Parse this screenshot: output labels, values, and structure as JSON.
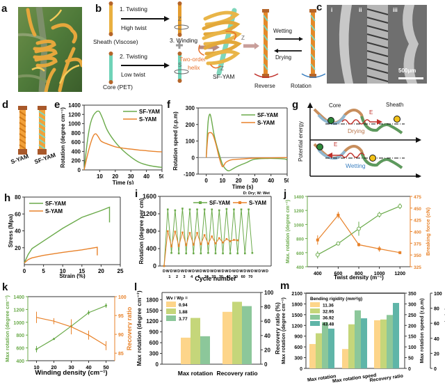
{
  "panels": {
    "a": {
      "letter": "a"
    },
    "b": {
      "letter": "b",
      "step1": "1. Twisting",
      "step1_sub": "High twist",
      "step2": "2. Twisting",
      "step2_sub": "Low twist",
      "step3": "3. Winding",
      "sheath_label": "Sheath (Viscose)",
      "core_label": "Core (PET)",
      "z_label": "Z",
      "s_label": "S",
      "helix_label_1": "Two-order",
      "helix_label_2": "helix",
      "sfyam_label": "SF-YAM",
      "wetting": "Wetting",
      "drying": "Drying",
      "reverse": "Reverse",
      "rotation": "Rotation",
      "plus": "+"
    },
    "c": {
      "letter": "c",
      "sub_labels": [
        "i",
        "ii",
        "iii"
      ],
      "scale_bar": "500μm"
    },
    "d": {
      "letter": "d",
      "labels": [
        "S-YAM",
        "SF-YAM"
      ]
    },
    "g": {
      "letter": "g",
      "ylabel": "Potential energy",
      "core": "Core",
      "sheath": "Sheath",
      "energy": "E",
      "drying": "Drying",
      "wetting": "Wetting"
    }
  },
  "colors": {
    "green": "#6aaa4a",
    "orange": "#e8822a",
    "bar_yellow": "#fdd58a",
    "bar_lightgreen": "#c5d67a",
    "bar_green": "#8cc79a",
    "bar_teal": "#5fb5a8"
  },
  "chart_data": [
    {
      "id": "e",
      "type": "line",
      "title": "",
      "xlabel": "Time (s)",
      "ylabel": "Rotation (degree cm⁻¹)",
      "xlim": [
        0,
        50
      ],
      "ylim": [
        0,
        1400
      ],
      "xticks": [
        10,
        20,
        30,
        40,
        50
      ],
      "yticks": [
        0,
        200,
        400,
        600,
        800,
        1000,
        1200,
        1400
      ],
      "legend": "top-right",
      "series": [
        {
          "name": "SF-YAM",
          "x": [
            0,
            2,
            4,
            6,
            8,
            9,
            10,
            12,
            15,
            20,
            25,
            30,
            35,
            40,
            45,
            50
          ],
          "y": [
            0,
            600,
            1000,
            1180,
            1260,
            1270,
            1250,
            1100,
            850,
            600,
            420,
            280,
            170,
            110,
            75,
            55
          ]
        },
        {
          "name": "S-YAM",
          "x": [
            0,
            2,
            4,
            6,
            7.5,
            9,
            11,
            15,
            20,
            25,
            30,
            35,
            40,
            45,
            50
          ],
          "y": [
            0,
            300,
            560,
            740,
            780,
            720,
            620,
            560,
            500,
            470,
            450,
            430,
            415,
            400,
            390
          ]
        }
      ]
    },
    {
      "id": "f",
      "type": "line",
      "title": "",
      "xlabel": "Time (s)",
      "ylabel": "Rotation speed (r.p.m)",
      "xlim": [
        -5,
        50
      ],
      "ylim": [
        -100,
        300
      ],
      "xticks": [
        0,
        10,
        20,
        30,
        40,
        50
      ],
      "yticks": [
        -100,
        0,
        100,
        200,
        300
      ],
      "legend": "top-right",
      "series": [
        {
          "name": "SF-YAM",
          "x": [
            0,
            1,
            2,
            3,
            5,
            8,
            10,
            12,
            14,
            17,
            20,
            25,
            30,
            40,
            48,
            50
          ],
          "y": [
            0,
            200,
            260,
            240,
            130,
            20,
            -40,
            -70,
            -80,
            -65,
            -50,
            -30,
            -10,
            -5,
            -8,
            -15
          ]
        },
        {
          "name": "S-YAM",
          "x": [
            0,
            1,
            2,
            4,
            6,
            8,
            10,
            12,
            15,
            20,
            30,
            40,
            50
          ],
          "y": [
            0,
            130,
            150,
            140,
            80,
            0,
            -55,
            -30,
            -15,
            -10,
            -3,
            -2,
            0
          ]
        }
      ]
    },
    {
      "id": "h",
      "type": "line",
      "title": "",
      "xlabel": "Strain (%)",
      "ylabel": "Stress (Mpa)",
      "xlim": [
        0,
        25
      ],
      "ylim": [
        0,
        80
      ],
      "xticks": [
        0,
        5,
        10,
        15,
        20,
        25
      ],
      "yticks": [
        20,
        40,
        60,
        80
      ],
      "legend": "top-left",
      "series": [
        {
          "name": "SF-YAM",
          "x": [
            0,
            1,
            2,
            5,
            10,
            15,
            20,
            22.2,
            22.2
          ],
          "y": [
            2,
            12,
            19,
            28,
            43,
            56,
            64,
            68,
            50
          ]
        },
        {
          "name": "S-YAM",
          "x": [
            0,
            1,
            2,
            5,
            10,
            15,
            19,
            19,
            19
          ],
          "y": [
            2,
            6,
            8,
            11,
            14.5,
            17.5,
            20.5,
            20.5,
            11
          ]
        }
      ]
    },
    {
      "id": "i",
      "type": "line",
      "title": "",
      "xlabel": "Cycle number",
      "ylabel": "Rotation (degree per cm)",
      "annotation": "D: Dry; W: Wet",
      "ylim": [
        0,
        1600
      ],
      "yticks": [
        0,
        400,
        800,
        1200,
        1600
      ],
      "xtick_labels_top": [
        "D",
        "W",
        "D",
        "W",
        "D",
        "W",
        "D",
        "W",
        "D",
        "W",
        "D",
        "W",
        "D",
        "W",
        "D",
        "W",
        "D",
        "W",
        "D",
        "W",
        "D",
        "W",
        "D",
        "W",
        "D",
        "W",
        "D",
        "W",
        "D"
      ],
      "cycle_labels": [
        "1",
        "2",
        "3",
        "4",
        "5",
        "10",
        "20",
        "30",
        "40",
        "50",
        "60",
        "70"
      ],
      "legend": "top",
      "series": [
        {
          "name": "SF-YAM",
          "y": [
            0,
            1300,
            300,
            1280,
            290,
            1320,
            290,
            1300,
            290,
            1300,
            290,
            1300,
            300,
            1300,
            290,
            1280,
            290,
            1310,
            290,
            1300,
            290,
            1300,
            290,
            1300,
            300
          ]
        },
        {
          "name": "S-YAM",
          "y": [
            0,
            800,
            450,
            790,
            460,
            770,
            480,
            760,
            490,
            760,
            500,
            710,
            510,
            680,
            520,
            640,
            540,
            620,
            570,
            600,
            590
          ]
        }
      ]
    },
    {
      "id": "j",
      "type": "line",
      "title": "",
      "xlabel": "Twist density (m⁻¹)",
      "ylabel": "Max. rotation (degree cm⁻¹)",
      "y2label": "Breaking force (cN)",
      "x": [
        400,
        600,
        800,
        1000,
        1200
      ],
      "xlim": [
        300,
        1300
      ],
      "ylim": [
        400,
        1400
      ],
      "y2lim": [
        325,
        475
      ],
      "yticks": [
        400,
        600,
        800,
        1000,
        1200,
        1400
      ],
      "y2ticks": [
        325,
        350,
        375,
        400,
        425,
        450,
        475
      ],
      "series": [
        {
          "name": "Max. rotation",
          "axis": "left",
          "values": [
            570,
            730,
            940,
            1140,
            1260
          ],
          "errors": [
            50,
            10,
            100,
            40,
            40
          ]
        },
        {
          "name": "Breaking force",
          "axis": "right",
          "values": [
            382,
            435,
            372,
            363,
            355
          ],
          "errors": [
            10,
            7,
            4,
            6,
            3
          ]
        }
      ]
    },
    {
      "id": "k",
      "type": "line",
      "title": "",
      "xlabel": "Winding density (cm⁻¹)",
      "ylabel": "Max rotation (degree cm⁻¹)",
      "y2label": "Recovery ratio",
      "x": [
        10,
        20,
        30,
        40,
        50
      ],
      "xlim": [
        5,
        55
      ],
      "ylim": [
        400,
        1400
      ],
      "y2lim": [
        83,
        100
      ],
      "yticks": [
        400,
        600,
        800,
        1000,
        1200,
        1400
      ],
      "y2ticks": [
        85,
        90,
        95,
        100
      ],
      "series": [
        {
          "name": "Max rotation",
          "axis": "left",
          "values": [
            580,
            740,
            940,
            1150,
            1260
          ],
          "errors": [
            50,
            15,
            100,
            35,
            35
          ]
        },
        {
          "name": "Recovery ratio",
          "axis": "right",
          "values": [
            94.5,
            93.5,
            92,
            89.8,
            87
          ],
          "errors": [
            1.5,
            0.8,
            2,
            1.2,
            1.2
          ]
        }
      ]
    },
    {
      "id": "l",
      "type": "bar",
      "title": "",
      "categories": [
        "Max rotation",
        "Recovery ratio"
      ],
      "ylabel": "Max rotation (degree cm⁻¹)",
      "y2label": "Recovery ratio (%)",
      "ylim": [
        0,
        2000
      ],
      "y2lim": [
        0,
        100
      ],
      "yticks": [
        0,
        300,
        600,
        900,
        1200,
        1500,
        1800
      ],
      "y2ticks": [
        0,
        20,
        40,
        60,
        80,
        100
      ],
      "legend_title": "Wv / Wp =",
      "legend": "top-left",
      "series": [
        {
          "name": "0.94",
          "values": [
            740,
            73
          ]
        },
        {
          "name": "1.88",
          "values": [
            1290,
            87
          ]
        },
        {
          "name": "3.77",
          "values": [
            780,
            81
          ]
        }
      ]
    },
    {
      "id": "m",
      "type": "bar",
      "title": "",
      "categories": [
        "Max rotation",
        "Max rotation speed",
        "Recovery ratio"
      ],
      "ylabel": "Max rotation (degree cm⁻¹)",
      "y2label": "Max rotation speed (r.p.m)",
      "y3label": "Recovery ratio (%)",
      "ylim": [
        0,
        2100
      ],
      "y2lim": [
        0,
        350
      ],
      "y3lim": [
        0,
        100
      ],
      "yticks": [
        0,
        300,
        600,
        900,
        1200,
        1500,
        1800,
        2100
      ],
      "y2ticks": [
        0,
        50,
        100,
        150,
        200,
        250,
        300,
        350
      ],
      "y3ticks": [
        0,
        20,
        40,
        60,
        80,
        100
      ],
      "legend_title": "Bending rigidity (mm²/g)",
      "legend": "top-left",
      "series": [
        {
          "name": "11.36",
          "values": [
            680,
            90,
            64
          ]
        },
        {
          "name": "32.95",
          "values": [
            980,
            205,
            65
          ]
        },
        {
          "name": "36.92",
          "values": [
            1290,
            270,
            71
          ]
        },
        {
          "name": "43.48",
          "values": [
            1110,
            233,
            87
          ]
        }
      ]
    }
  ]
}
